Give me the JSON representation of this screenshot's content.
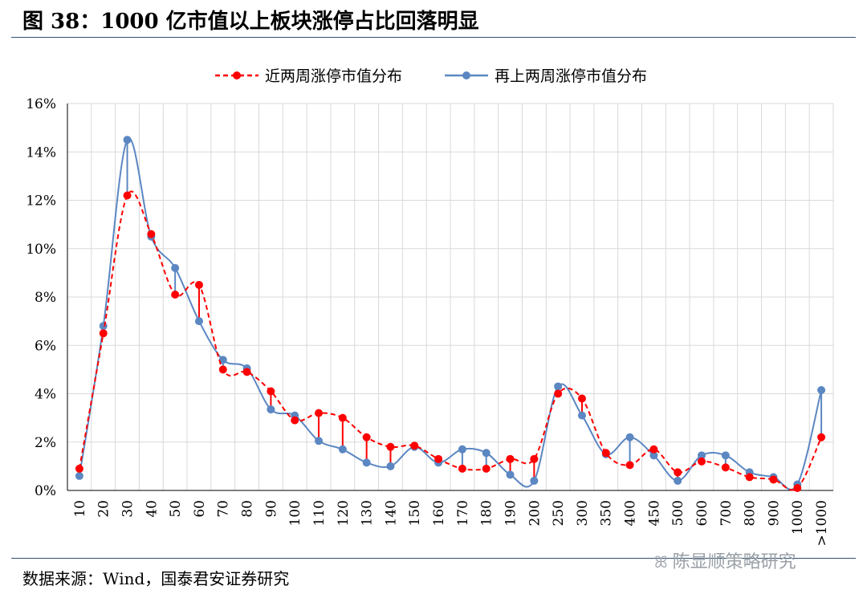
{
  "figure": {
    "title": "图 38：1000 亿市值以上板块涨停占比回落明显",
    "source": "数据来源：Wind，国泰君安证券研究",
    "watermark": "陈显顺策略研究",
    "watermark_icon": "wechat-icon"
  },
  "chart_data": {
    "type": "line",
    "title": "",
    "xlabel": "",
    "ylabel": "",
    "categories": [
      "10",
      "20",
      "30",
      "40",
      "50",
      "60",
      "70",
      "80",
      "90",
      "100",
      "110",
      "120",
      "130",
      "140",
      "150",
      "160",
      "170",
      "180",
      "190",
      "200",
      "250",
      "300",
      "350",
      "400",
      "450",
      "500",
      "600",
      "700",
      "800",
      "900",
      "1000",
      ">1000"
    ],
    "ylim": [
      0,
      16
    ],
    "yticks": [
      0,
      2,
      4,
      6,
      8,
      10,
      12,
      14,
      16
    ],
    "ytick_labels": [
      "0%",
      "2%",
      "4%",
      "6%",
      "8%",
      "10%",
      "12%",
      "14%",
      "16%"
    ],
    "grid": true,
    "legend_position": "top",
    "series": [
      {
        "name": "近两周涨停市值分布",
        "color": "#ff0000",
        "line_style": "dashed",
        "values": [
          0.9,
          6.5,
          12.2,
          10.6,
          8.1,
          8.5,
          5.0,
          4.9,
          4.1,
          2.9,
          3.2,
          3.0,
          2.2,
          1.8,
          1.85,
          1.3,
          0.9,
          0.9,
          1.3,
          1.3,
          4.0,
          3.8,
          1.55,
          1.05,
          1.7,
          0.75,
          1.2,
          0.95,
          0.55,
          0.45,
          0.1,
          2.2
        ]
      },
      {
        "name": "再上两周涨停市值分布",
        "color": "#5b87c2",
        "line_style": "solid",
        "values": [
          0.6,
          6.8,
          14.5,
          10.5,
          9.2,
          7.0,
          5.4,
          5.05,
          3.35,
          3.1,
          2.05,
          1.7,
          1.15,
          1.0,
          1.8,
          1.15,
          1.7,
          1.55,
          0.65,
          0.4,
          4.3,
          3.1,
          1.5,
          2.2,
          1.45,
          0.4,
          1.45,
          1.45,
          0.75,
          0.55,
          0.25,
          4.15
        ]
      }
    ]
  }
}
